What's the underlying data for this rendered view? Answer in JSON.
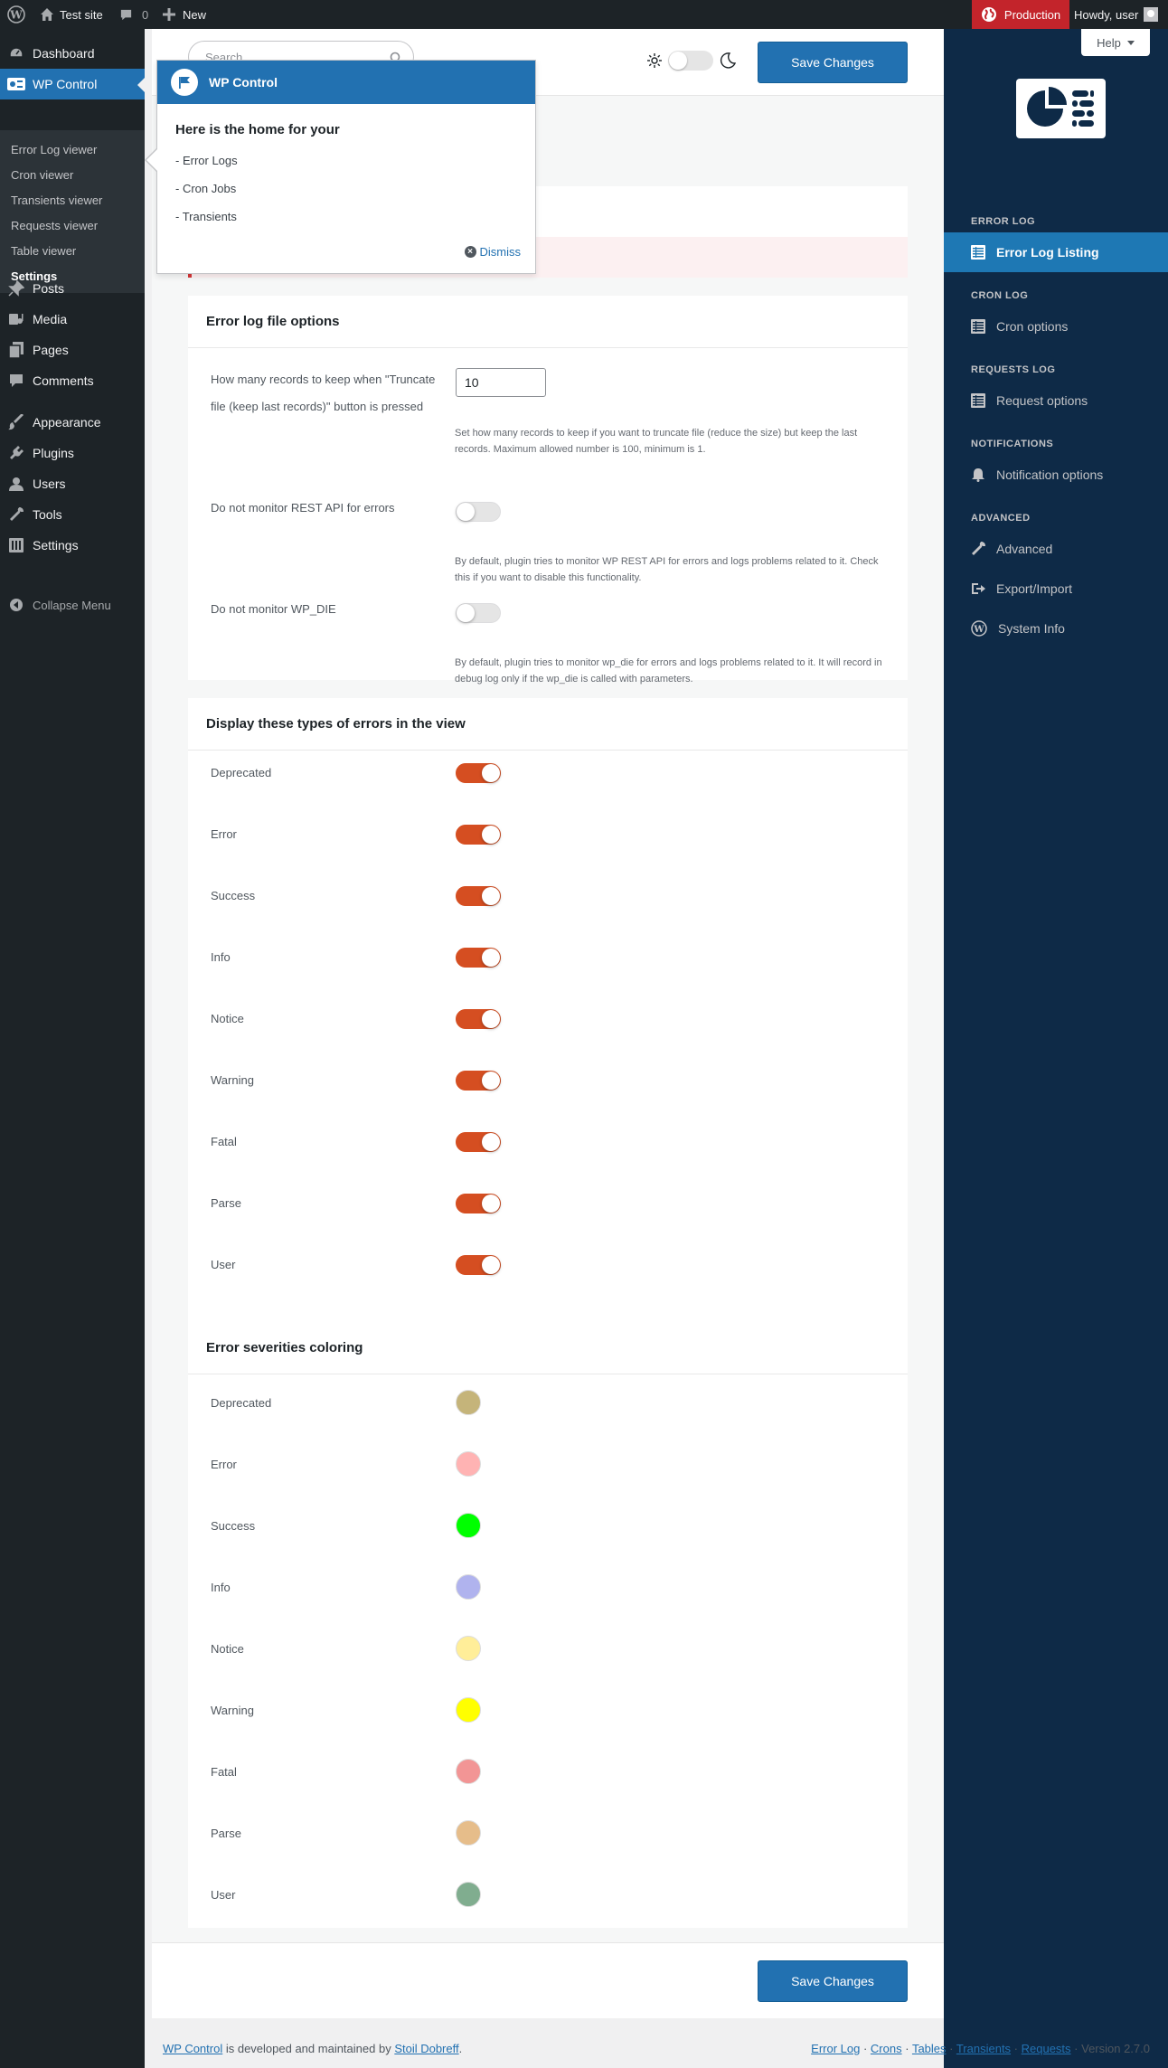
{
  "adminbar": {
    "site_name": "Test site",
    "comments_count": "0",
    "new_label": "New",
    "environment": "Production",
    "howdy": "Howdy, user"
  },
  "menu": {
    "dashboard": "Dashboard",
    "wp_control": "WP Control",
    "submenu": [
      "Error Log viewer",
      "Cron viewer",
      "Transients viewer",
      "Requests viewer",
      "Table viewer",
      "Settings"
    ],
    "posts": "Posts",
    "media": "Media",
    "pages": "Pages",
    "comments": "Comments",
    "appearance": "Appearance",
    "plugins": "Plugins",
    "users": "Users",
    "tools": "Tools",
    "settings": "Settings",
    "collapse": "Collapse Menu"
  },
  "topbar": {
    "search_placeholder": "Search",
    "save_label": "Save Changes"
  },
  "pointer": {
    "header": "WP Control",
    "title": "Here is the home for your",
    "lines": [
      "- Error Logs",
      "- Cron Jobs",
      "- Transients"
    ],
    "dismiss": "Dismiss"
  },
  "file_options": {
    "title": "Error log file options",
    "records_label_1": "How many records to keep when \"Truncate",
    "records_label_2": "file (keep last records)\" button is pressed",
    "records_value": "10",
    "records_desc": "Set how many records to keep if you want to truncate file (reduce the size) but keep the last records. Maximum allowed number is 100, minimum is 1.",
    "rest_label": "Do not monitor REST API for errors",
    "rest_desc": "By default, plugin tries to monitor WP REST API for errors and logs problems related to it. Check this if you want to disable this functionality.",
    "wpdie_label": "Do not monitor WP_DIE",
    "wpdie_desc": "By default, plugin tries to monitor wp_die for errors and logs problems related to it. It will record in debug log only if the wp_die is called with parameters."
  },
  "display_types": {
    "title": "Display these types of errors in the view",
    "items": [
      "Deprecated",
      "Error",
      "Success",
      "Info",
      "Notice",
      "Warning",
      "Fatal",
      "Parse",
      "User"
    ]
  },
  "coloring": {
    "title": "Error severities coloring",
    "items": [
      {
        "label": "Deprecated",
        "color": "#c5b47a"
      },
      {
        "label": "Error",
        "color": "#ffb3b3"
      },
      {
        "label": "Success",
        "color": "#00ff00"
      },
      {
        "label": "Info",
        "color": "#b0b3ee"
      },
      {
        "label": "Notice",
        "color": "#ffee99"
      },
      {
        "label": "Warning",
        "color": "#ffff00"
      },
      {
        "label": "Fatal",
        "color": "#f29595"
      },
      {
        "label": "Parse",
        "color": "#e6bd8a"
      },
      {
        "label": "User",
        "color": "#80ad8f"
      }
    ]
  },
  "rightpanel": {
    "help": "Help",
    "sections": {
      "error_log": "ERROR LOG",
      "cron_log": "CRON LOG",
      "requests_log": "REQUESTS LOG",
      "notifications": "NOTIFICATIONS",
      "advanced": "ADVANCED"
    },
    "items": {
      "error_log_listing": "Error Log Listing",
      "cron_options": "Cron options",
      "request_options": "Request options",
      "notification_options": "Notification options",
      "advanced": "Advanced",
      "export_import": "Export/Import",
      "system_info": "System Info"
    }
  },
  "footer": {
    "plugin_link": "WP Control",
    "developed_text": " is developed and maintained by ",
    "author_link": "Stoil Dobreff",
    "period": ".",
    "links": [
      "Error Log",
      "Crons",
      "Tables",
      "Transients",
      "Requests"
    ],
    "version": "Version 2.7.0"
  }
}
